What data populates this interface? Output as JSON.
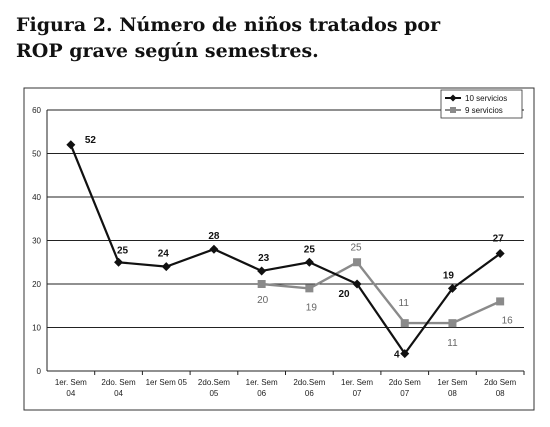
{
  "figure": {
    "title_line1": "Figura 2. Número de niños tratados  por",
    "title_line2": "ROP grave según semestres."
  },
  "chart_data": {
    "type": "line",
    "categories": [
      [
        "1er. Sem",
        "04"
      ],
      [
        "2do. Sem",
        "04"
      ],
      [
        "1er Sem 05",
        ""
      ],
      [
        "2do.Sem",
        "05"
      ],
      [
        "1er. Sem",
        "06"
      ],
      [
        "2do.Sem",
        "06"
      ],
      [
        "1er. Sem",
        "07"
      ],
      [
        "2do Sem",
        "07"
      ],
      [
        "1er Sem",
        "08"
      ],
      [
        "2do Sem",
        "08"
      ]
    ],
    "ylim": [
      0,
      60
    ],
    "yticks": [
      0,
      10,
      20,
      30,
      40,
      50,
      60
    ],
    "grid": true,
    "legend_position": "top-right",
    "series": [
      {
        "name": "10 servicios",
        "color": "#111111",
        "marker": "diamond",
        "values": [
          52,
          25,
          24,
          28,
          23,
          25,
          20,
          4,
          19,
          27
        ],
        "labels": [
          "52",
          "25",
          "24",
          "28",
          "23",
          "25",
          "20",
          "4",
          "19",
          "27"
        ]
      },
      {
        "name": "9 servicios",
        "color": "#8a8a8a",
        "marker": "square",
        "values": [
          null,
          null,
          null,
          null,
          20,
          19,
          25,
          11,
          11,
          16
        ],
        "labels": [
          "",
          "",
          "",
          "",
          "20",
          "19",
          "25",
          "11",
          "11",
          "16"
        ]
      }
    ]
  }
}
